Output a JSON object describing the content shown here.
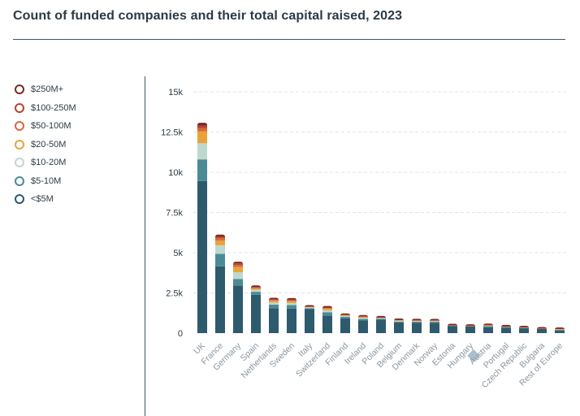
{
  "title": "Count of funded companies and their total capital raised, 2023",
  "chart_data": {
    "type": "bar",
    "stacked": true,
    "title": "Count of funded companies and their total capital raised, 2023",
    "xlabel": "",
    "ylabel": "",
    "ylim": [
      0,
      15000
    ],
    "yticks": [
      0,
      2500,
      5000,
      7500,
      10000,
      12500,
      15000
    ],
    "ytick_labels": [
      "0",
      "2.5k",
      "5k",
      "7.5k",
      "10k",
      "12.5k",
      "15k"
    ],
    "grid": true,
    "legend_position": "left",
    "categories": [
      "UK",
      "France",
      "Germany",
      "Spain",
      "Netherlands",
      "Sweden",
      "Italy",
      "Switzerland",
      "Finland",
      "Ireland",
      "Poland",
      "Belgium",
      "Denmark",
      "Norway",
      "Estonia",
      "Hungary",
      "Austria",
      "Portugal",
      "Czech Republic",
      "Bulgaria",
      "Rest of Europe"
    ],
    "highlighted_category": "Austria",
    "series": [
      {
        "name": "<$5M",
        "color": "#2e5a6e",
        "values": [
          9450,
          4150,
          2950,
          2380,
          1550,
          1520,
          1490,
          1080,
          920,
          800,
          840,
          660,
          630,
          640,
          440,
          420,
          370,
          330,
          310,
          260,
          150
        ]
      },
      {
        "name": "$5-10M",
        "color": "#4b8b96",
        "values": [
          1350,
          780,
          420,
          190,
          220,
          230,
          50,
          220,
          90,
          80,
          60,
          60,
          80,
          70,
          20,
          30,
          60,
          50,
          30,
          20,
          50
        ]
      },
      {
        "name": "$10-20M",
        "color": "#bfd8cf",
        "values": [
          1000,
          530,
          420,
          130,
          130,
          120,
          60,
          120,
          60,
          70,
          50,
          50,
          40,
          40,
          20,
          10,
          40,
          30,
          20,
          10,
          40
        ]
      },
      {
        "name": "$20-50M",
        "color": "#e8a33d",
        "values": [
          750,
          300,
          320,
          80,
          110,
          120,
          30,
          100,
          40,
          50,
          20,
          30,
          30,
          30,
          10,
          5,
          20,
          10,
          10,
          5,
          20
        ]
      },
      {
        "name": "$50-100M",
        "color": "#d8683a",
        "values": [
          200,
          150,
          120,
          50,
          50,
          50,
          20,
          40,
          20,
          20,
          10,
          20,
          20,
          10,
          5,
          5,
          10,
          5,
          5,
          5,
          10
        ]
      },
      {
        "name": "$100-250M",
        "color": "#b54432",
        "values": [
          150,
          100,
          100,
          40,
          40,
          40,
          10,
          30,
          15,
          20,
          5,
          10,
          10,
          10,
          5,
          3,
          10,
          5,
          3,
          3,
          5
        ]
      },
      {
        "name": "$250M+",
        "color": "#7a2a22",
        "values": [
          100,
          40,
          30,
          20,
          20,
          20,
          5,
          20,
          5,
          10,
          5,
          5,
          5,
          5,
          3,
          2,
          5,
          3,
          2,
          2,
          2
        ]
      }
    ]
  },
  "legend": [
    {
      "label": "$250M+",
      "color": "#7a2a22"
    },
    {
      "label": "$100-250M",
      "color": "#b54432"
    },
    {
      "label": "$50-100M",
      "color": "#d8683a"
    },
    {
      "label": "$20-50M",
      "color": "#e8a33d"
    },
    {
      "label": "$10-20M",
      "color": "#bfd8cf"
    },
    {
      "label": "$5-10M",
      "color": "#4b8b96"
    },
    {
      "label": "<$5M",
      "color": "#2e5a6e"
    }
  ]
}
